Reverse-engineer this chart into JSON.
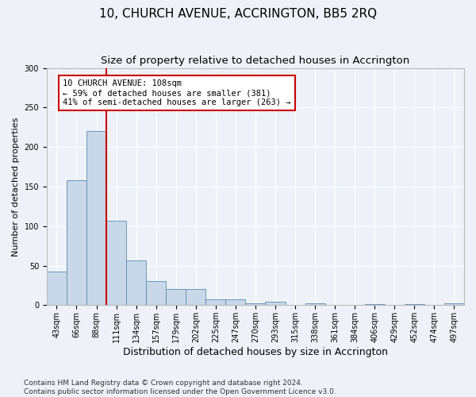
{
  "title": "10, CHURCH AVENUE, ACCRINGTON, BB5 2RQ",
  "subtitle": "Size of property relative to detached houses in Accrington",
  "xlabel": "Distribution of detached houses by size in Accrington",
  "ylabel": "Number of detached properties",
  "categories": [
    "43sqm",
    "66sqm",
    "88sqm",
    "111sqm",
    "134sqm",
    "157sqm",
    "179sqm",
    "202sqm",
    "225sqm",
    "247sqm",
    "270sqm",
    "293sqm",
    "315sqm",
    "338sqm",
    "361sqm",
    "384sqm",
    "406sqm",
    "429sqm",
    "452sqm",
    "474sqm",
    "497sqm"
  ],
  "values": [
    42,
    158,
    220,
    107,
    57,
    30,
    20,
    20,
    7,
    7,
    2,
    4,
    0,
    2,
    0,
    0,
    1,
    0,
    1,
    0,
    2
  ],
  "bar_color": "#c8d8e8",
  "bar_edge_color": "#5a8ab0",
  "vline_color": "#cc0000",
  "annotation_text": "10 CHURCH AVENUE: 108sqm\n← 59% of detached houses are smaller (381)\n41% of semi-detached houses are larger (263) →",
  "annotation_box_color": "#ffffff",
  "annotation_box_edge": "#cc0000",
  "ylim": [
    0,
    300
  ],
  "yticks": [
    0,
    50,
    100,
    150,
    200,
    250,
    300
  ],
  "footer_text": "Contains HM Land Registry data © Crown copyright and database right 2024.\nContains public sector information licensed under the Open Government Licence v3.0.",
  "bg_color": "#eef2f8",
  "grid_color": "#ffffff",
  "title_fontsize": 11,
  "subtitle_fontsize": 9.5,
  "xlabel_fontsize": 9,
  "ylabel_fontsize": 8,
  "tick_fontsize": 7,
  "footer_fontsize": 6.5,
  "annot_fontsize": 7.5
}
